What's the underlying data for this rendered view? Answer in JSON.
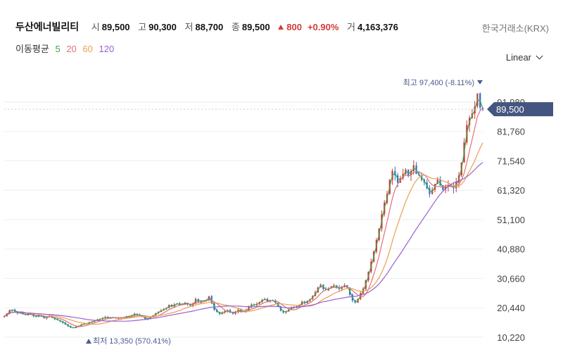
{
  "header": {
    "name": "두산에너빌리티",
    "open_label": "시",
    "open": "89,500",
    "high_label": "고",
    "high": "90,300",
    "low_label": "저",
    "low": "88,700",
    "close_label": "종",
    "close": "89,500",
    "change": "800",
    "change_pct": "+0.90%",
    "volume_label": "거",
    "volume": "4,163,376",
    "exchange": "한국거래소(KRX)"
  },
  "moving_average": {
    "label": "이동평균",
    "periods": [
      "5",
      "20",
      "60",
      "120"
    ],
    "colors": [
      "#3aa64a",
      "#e0707a",
      "#e8a050",
      "#9a5fd0"
    ]
  },
  "scale_selector": {
    "value": "Linear"
  },
  "colors": {
    "up": "#d23a3a",
    "down": "#2f6fd6",
    "price_tag": "#44557f"
  },
  "chart_data": {
    "type": "candlestick",
    "y_ticks": [
      "10,220",
      "20,440",
      "30,660",
      "40,880",
      "51,100",
      "61,320",
      "71,540",
      "81,760",
      "91,980"
    ],
    "y_tick_values": [
      10220,
      20440,
      30660,
      40880,
      51100,
      61320,
      71540,
      81760,
      91980
    ],
    "ylim": [
      8000,
      103000
    ],
    "current_price": 89500,
    "current_price_label": "89,500",
    "max_annotation": "최고 97,400 (-8.11%)",
    "max_value": 97400,
    "min_annotation": "최저 13,350 (570.41%)",
    "min_value": 13350,
    "close_series": [
      17500,
      18500,
      19600,
      19800,
      19200,
      18500,
      18700,
      18200,
      17900,
      18400,
      18000,
      17600,
      17300,
      17800,
      17500,
      16800,
      17200,
      17500,
      17000,
      16500,
      16200,
      15800,
      15300,
      14600,
      14000,
      13600,
      13400,
      13800,
      14200,
      14600,
      14800,
      15000,
      15400,
      15600,
      16000,
      16300,
      16600,
      16800,
      17200,
      16900,
      17000,
      17100,
      16800,
      16900,
      17000,
      17200,
      17400,
      17600,
      17800,
      18400,
      18000,
      17700,
      17300,
      16500,
      16800,
      17200,
      17800,
      18600,
      19000,
      19500,
      20000,
      20400,
      21500,
      20800,
      21600,
      22000,
      21400,
      21800,
      22200,
      21600,
      21200,
      22000,
      23500,
      22500,
      23000,
      22800,
      23200,
      24500,
      22000,
      19800,
      19000,
      18300,
      18800,
      19300,
      19600,
      18800,
      18400,
      19000,
      19800,
      19200,
      19000,
      19600,
      20800,
      21600,
      21300,
      21800,
      22500,
      23200,
      23500,
      22600,
      23100,
      22700,
      22200,
      21000,
      19500,
      18800,
      19200,
      19800,
      20400,
      20800,
      20600,
      21500,
      22600,
      22000,
      22800,
      23500,
      24500,
      25800,
      27500,
      28500,
      27000,
      26500,
      27200,
      27800,
      28200,
      27600,
      27000,
      27800,
      28300,
      27500,
      25000,
      23000,
      22200,
      23500,
      25500,
      27000,
      30000,
      33000,
      36500,
      40000,
      44000,
      48000,
      53000,
      57000,
      60000,
      65000,
      68000,
      66500,
      64000,
      65500,
      67000,
      68500,
      66500,
      68000,
      70000,
      67000,
      66500,
      65000,
      64000,
      62000,
      60000,
      61500,
      63500,
      65000,
      63000,
      61500,
      62500,
      63000,
      62500,
      62000,
      64000,
      66500,
      71000,
      78000,
      84000,
      86500,
      88000,
      90500,
      95000,
      90000,
      89500
    ]
  }
}
